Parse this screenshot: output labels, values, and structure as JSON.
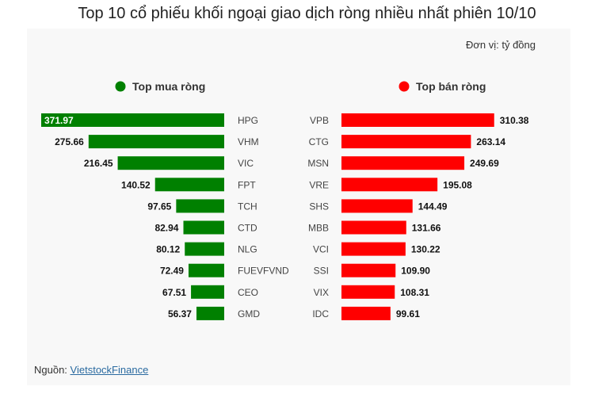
{
  "title": "Top 10 cổ phiếu khối ngoại giao dịch ròng nhiều nhất phiên 10/10",
  "unit_note": "Đơn vị: tỷ đồng",
  "source": {
    "prefix": "Nguồn: ",
    "link": "VietstockFinance"
  },
  "colors": {
    "buy": "#008000",
    "sell": "#ff0000"
  },
  "chart_data": [
    {
      "type": "bar",
      "orientation": "horizontal",
      "direction": "right-to-left",
      "legend": "Top mua ròng",
      "color": "#008000",
      "categories": [
        "HPG",
        "VHM",
        "VIC",
        "FPT",
        "TCH",
        "CTD",
        "NLG",
        "FUEVFVND",
        "CEO",
        "GMD"
      ],
      "values": [
        371.97,
        275.66,
        216.45,
        140.52,
        97.65,
        82.94,
        80.12,
        72.49,
        67.51,
        56.37
      ],
      "value_labels": [
        "371.97",
        "275.66",
        "216.45",
        "140.52",
        "97.65",
        "82.94",
        "80.12",
        "72.49",
        "67.51",
        "56.37"
      ],
      "xlim": [
        0,
        371.97
      ],
      "grid": false,
      "legend_position": "top"
    },
    {
      "type": "bar",
      "orientation": "horizontal",
      "direction": "left-to-right",
      "legend": "Top bán ròng",
      "color": "#ff0000",
      "categories": [
        "VPB",
        "CTG",
        "MSN",
        "VRE",
        "SHS",
        "MBB",
        "VCI",
        "SSI",
        "VIX",
        "IDC"
      ],
      "values": [
        310.38,
        263.14,
        249.69,
        195.08,
        144.49,
        131.66,
        130.22,
        109.9,
        108.31,
        99.61
      ],
      "value_labels": [
        "310.38",
        "263.14",
        "249.69",
        "195.08",
        "144.49",
        "131.66",
        "130.22",
        "109.90",
        "108.31",
        "99.61"
      ],
      "xlim": [
        0,
        371.97
      ],
      "grid": false,
      "legend_position": "top"
    }
  ]
}
